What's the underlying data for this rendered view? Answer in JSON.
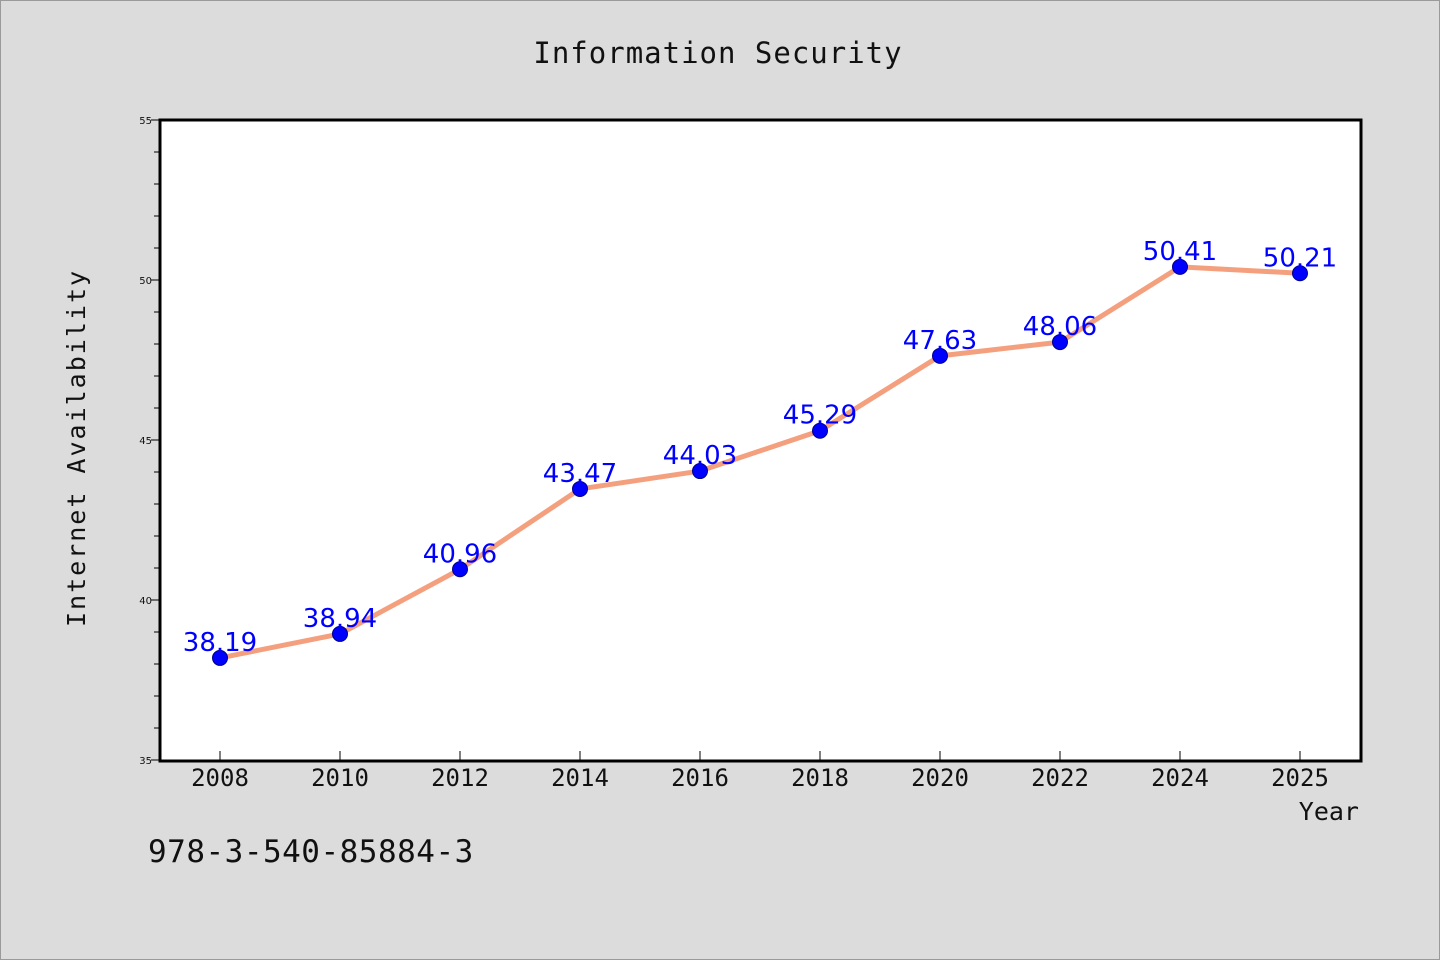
{
  "caption": "978-3-540-85884-3",
  "chart_data": {
    "type": "line",
    "title": "Information Security",
    "xlabel": "Year",
    "ylabel": "Internet Availability",
    "categories": [
      "2008",
      "2010",
      "2012",
      "2014",
      "2016",
      "2018",
      "2020",
      "2022",
      "2024",
      "2025"
    ],
    "values": [
      38.19,
      38.94,
      40.96,
      43.47,
      44.03,
      45.29,
      47.63,
      48.06,
      50.41,
      50.21
    ],
    "data_labels": [
      "38.19",
      "38.94",
      "40.96",
      "43.47",
      "44.03",
      "45.29",
      "47.63",
      "48.06",
      "50.41",
      "50.21"
    ],
    "ylim": [
      35,
      55
    ],
    "yticks": [
      "35",
      "40",
      "45",
      "50",
      "55"
    ],
    "grid": false,
    "legend": "none",
    "colors": {
      "line": "#f4a07e",
      "marker": "#0000ff",
      "marker_edge": "#00008b",
      "data_label": "#0000ff",
      "axes": "#000000",
      "plot_background": "#ffffff",
      "page_background": "#dcdcdc"
    }
  }
}
